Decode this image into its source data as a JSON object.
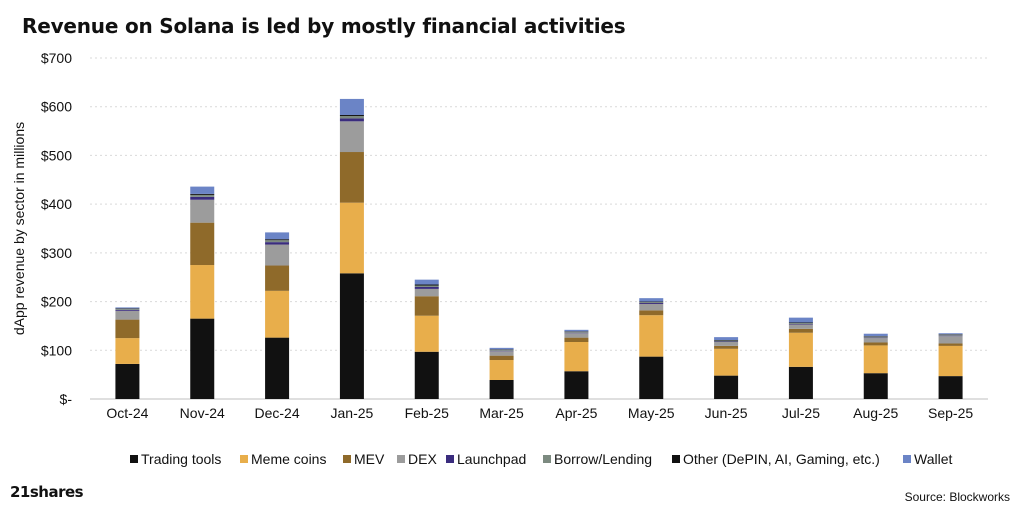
{
  "title": "Revenue on Solana is led by mostly financial activities",
  "brand": "21shares",
  "source": "Source: Blockworks",
  "colors": {
    "Trading tools": "#111111",
    "Meme coins": "#e8ae4b",
    "MEV": "#8f6a2a",
    "DEX": "#9c9c9c",
    "Launchpad": "#3a2c7e",
    "Borrow/Lending": "#7c8a80",
    "Other (DePIN, AI, Gaming, etc.)": "#111111",
    "Wallet": "#6b84c6"
  },
  "chart_data": {
    "type": "bar",
    "stacked": true,
    "ylabel": "dApp revenue by sector in millions",
    "ylim": [
      0,
      700
    ],
    "yticks": [
      0,
      100,
      200,
      300,
      400,
      500,
      600,
      700
    ],
    "ytick_labels": [
      "$-",
      "$100",
      "$200",
      "$300",
      "$400",
      "$500",
      "$600",
      "$700"
    ],
    "grid": true,
    "legend": "bottom",
    "categories": [
      "Oct-24",
      "Nov-24",
      "Dec-24",
      "Jan-25",
      "Feb-25",
      "Mar-25",
      "Apr-25",
      "May-25",
      "Jun-25",
      "Jul-25",
      "Aug-25",
      "Sep-25"
    ],
    "series": [
      {
        "name": "Trading tools",
        "values": [
          72,
          165,
          126,
          258,
          97,
          39,
          57,
          87,
          48,
          66,
          53,
          47
        ]
      },
      {
        "name": "Meme coins",
        "values": [
          53,
          110,
          96,
          145,
          74,
          41,
          60,
          85,
          55,
          70,
          57,
          62
        ]
      },
      {
        "name": "MEV",
        "values": [
          38,
          87,
          52,
          104,
          40,
          9,
          9,
          10,
          6,
          8,
          6,
          5
        ]
      },
      {
        "name": "DEX",
        "values": [
          18,
          47,
          43,
          63,
          15,
          9,
          9,
          13,
          8,
          9,
          9,
          15
        ]
      },
      {
        "name": "Launchpad",
        "values": [
          2,
          6,
          5,
          6,
          4,
          1,
          1,
          2,
          1,
          1,
          1,
          1
        ]
      },
      {
        "name": "Borrow/Lending",
        "values": [
          2,
          4,
          4,
          5,
          3,
          2,
          2,
          2,
          2,
          2,
          2,
          2
        ]
      },
      {
        "name": "Other (DePIN, AI, Gaming, etc.)",
        "values": [
          1,
          2,
          2,
          2,
          2,
          1,
          1,
          1,
          1,
          1,
          1,
          1
        ]
      },
      {
        "name": "Wallet",
        "values": [
          2,
          15,
          14,
          33,
          10,
          3,
          3,
          7,
          6,
          10,
          5,
          2
        ]
      }
    ]
  }
}
